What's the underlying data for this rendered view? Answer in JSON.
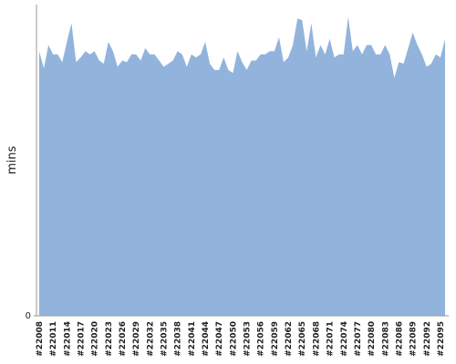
{
  "chart_data": {
    "type": "area",
    "y_label": "mins",
    "color": "#92b4dc",
    "categories": [
      "#22008",
      null,
      null,
      "#22011",
      null,
      null,
      "#22014",
      null,
      null,
      "#22017",
      null,
      null,
      "#22020",
      null,
      null,
      "#22023",
      null,
      null,
      "#22026",
      null,
      null,
      "#22029",
      null,
      null,
      "#22032",
      null,
      null,
      "#22035",
      null,
      null,
      "#22038",
      null,
      null,
      "#22041",
      null,
      null,
      "#22044",
      null,
      null,
      "#22047",
      null,
      null,
      "#22050",
      null,
      null,
      "#22053",
      null,
      null,
      "#22056",
      null,
      null,
      "#22059",
      null,
      null,
      "#22062",
      null,
      null,
      "#22065",
      null,
      null,
      "#22068",
      null,
      null,
      "#22071",
      null,
      null,
      "#22074",
      null,
      null,
      "#22077",
      null,
      null,
      "#22080",
      null,
      null,
      "#22083",
      null,
      null,
      "#22086",
      null,
      null,
      "#22089",
      null,
      null,
      "#22092",
      null,
      null,
      "#22095",
      null
    ],
    "values": [
      85,
      79.5,
      87,
      84,
      84,
      81.5,
      88,
      94,
      81.5,
      83,
      85,
      84,
      85,
      82,
      81,
      88,
      85,
      80,
      82,
      81.5,
      84,
      84,
      82,
      86,
      84,
      84,
      82,
      80,
      81,
      82,
      85,
      84,
      80,
      84,
      83,
      84,
      88,
      81,
      79,
      79,
      83,
      79,
      78,
      85,
      81.5,
      79,
      82,
      82,
      84,
      84,
      85,
      85,
      89.5,
      81.5,
      83,
      87,
      95.5,
      95,
      85,
      94,
      83,
      87,
      84,
      89,
      83,
      84,
      84,
      96,
      85,
      87,
      84,
      87,
      87,
      84,
      84,
      87,
      84,
      76.5,
      81.5,
      81,
      86,
      91,
      87,
      84,
      80,
      81,
      84,
      83,
      89
    ],
    "ylim": [
      0,
      100
    ],
    "yticks": [
      0
    ]
  }
}
